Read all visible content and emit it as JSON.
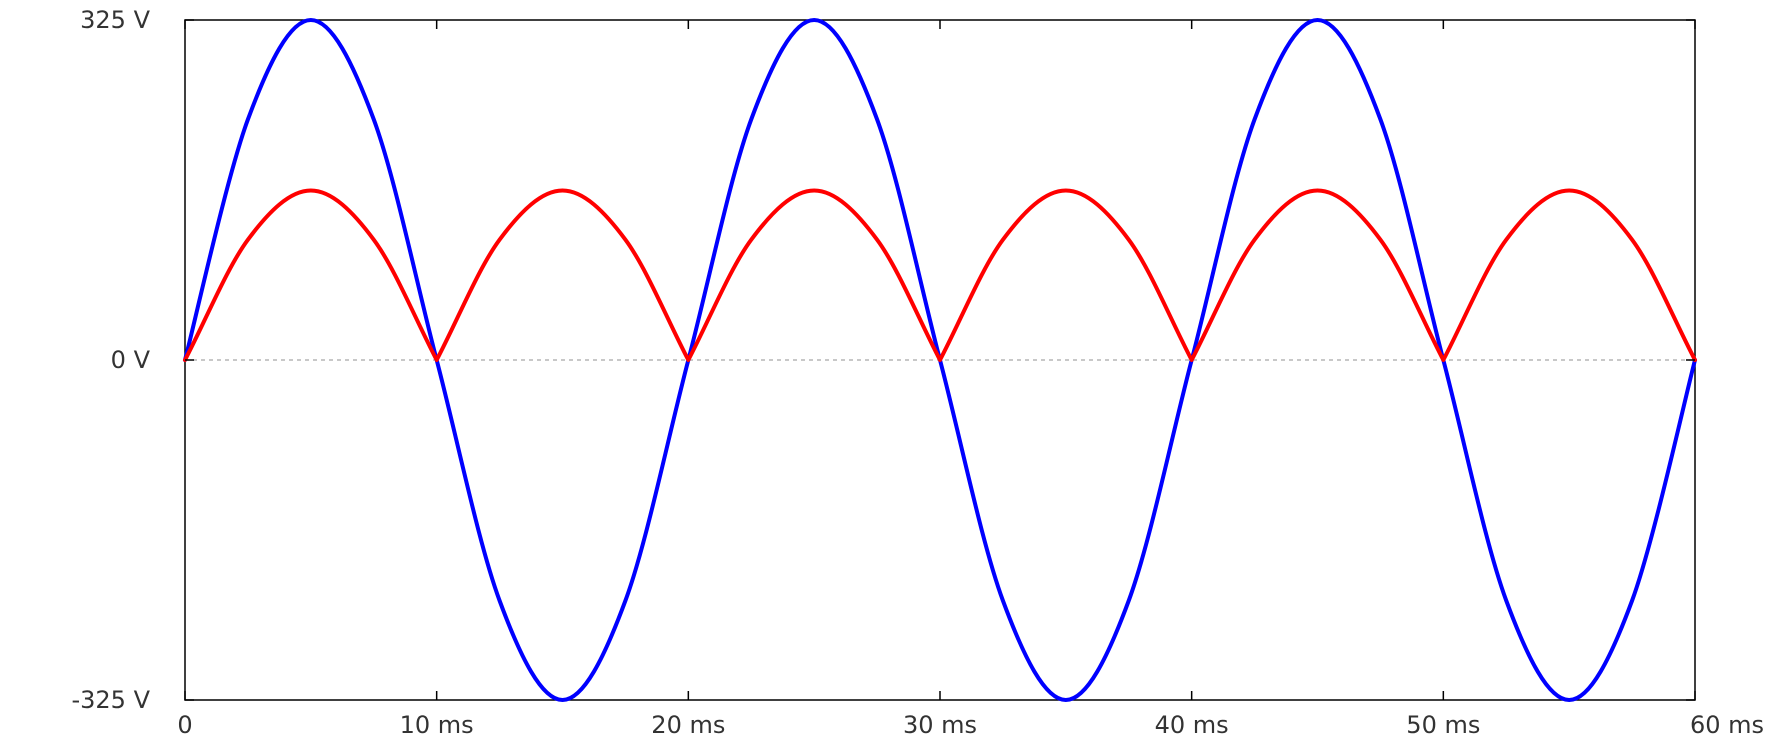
{
  "chart_data": {
    "type": "line",
    "title": "",
    "xlabel": "",
    "ylabel": "",
    "x_range": [
      0,
      60
    ],
    "y_range": [
      -325,
      325
    ],
    "grid": false,
    "x_ticks": [
      {
        "value": 0,
        "label": "0"
      },
      {
        "value": 10,
        "label": "10 ms"
      },
      {
        "value": 20,
        "label": "20 ms"
      },
      {
        "value": 30,
        "label": "30 ms"
      },
      {
        "value": 40,
        "label": "40 ms"
      },
      {
        "value": 50,
        "label": "50 ms"
      },
      {
        "value": 60,
        "label": "60 ms"
      }
    ],
    "y_ticks": [
      {
        "value": 325,
        "label": "325 V"
      },
      {
        "value": 0,
        "label": "0 V"
      },
      {
        "value": -325,
        "label": "-325 V"
      }
    ],
    "series": [
      {
        "color": "#0000ff",
        "x": [
          0,
          2.5,
          5,
          7.5,
          10,
          12.5,
          15,
          17.5,
          20,
          22.5,
          25,
          27.5,
          30,
          32.5,
          35,
          37.5,
          40,
          42.5,
          45,
          47.5,
          50,
          52.5,
          55,
          57.5,
          60
        ],
        "values": [
          0,
          230,
          325,
          230,
          0,
          -230,
          -325,
          -230,
          0,
          230,
          325,
          230,
          0,
          -230,
          -325,
          -230,
          0,
          230,
          325,
          230,
          0,
          -230,
          -325,
          -230,
          0
        ]
      },
      {
        "color": "#ff0000",
        "x": [
          0,
          2.5,
          5,
          7.5,
          10,
          12.5,
          15,
          17.5,
          20,
          22.5,
          25,
          27.5,
          30,
          32.5,
          35,
          37.5,
          40,
          42.5,
          45,
          47.5,
          50,
          52.5,
          55,
          57.5,
          60
        ],
        "values": [
          0,
          115,
          162,
          115,
          0,
          115,
          162,
          115,
          0,
          115,
          162,
          115,
          0,
          115,
          162,
          115,
          0,
          115,
          162,
          115,
          0,
          115,
          162,
          115,
          0
        ]
      }
    ]
  }
}
